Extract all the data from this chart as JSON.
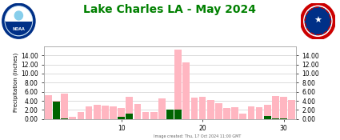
{
  "title": "Lake Charles LA - May 2024",
  "title_color": "#008000",
  "ylabel": "Precipitation (Inches)",
  "days": [
    1,
    2,
    3,
    4,
    5,
    6,
    7,
    8,
    9,
    10,
    11,
    12,
    13,
    14,
    15,
    16,
    17,
    18,
    19,
    20,
    21,
    22,
    23,
    24,
    25,
    26,
    27,
    28,
    29,
    30,
    31
  ],
  "pink_bars": [
    5.2,
    4.0,
    5.5,
    0.5,
    1.5,
    2.8,
    3.2,
    3.0,
    2.8,
    2.5,
    4.9,
    3.3,
    1.6,
    1.5,
    4.5,
    2.0,
    15.2,
    12.5,
    4.7,
    4.9,
    4.1,
    3.5,
    2.5,
    2.6,
    1.2,
    2.8,
    2.6,
    3.2,
    5.1,
    4.8,
    4.2
  ],
  "green_bars": [
    0.0,
    3.8,
    0.15,
    0.0,
    0.0,
    0.0,
    0.0,
    0.0,
    0.0,
    0.4,
    1.1,
    0.0,
    0.0,
    0.0,
    0.0,
    2.0,
    2.1,
    0.0,
    0.0,
    0.0,
    0.0,
    0.0,
    0.0,
    0.0,
    0.0,
    0.0,
    0.0,
    0.7,
    0.1,
    0.1,
    0.0
  ],
  "pink_color": "#FFB6C1",
  "green_color": "#006400",
  "ylim": [
    0,
    16
  ],
  "yticks": [
    0.0,
    2.0,
    4.0,
    6.0,
    8.0,
    10.0,
    12.0,
    14.0
  ],
  "xticks": [
    10,
    20,
    30
  ],
  "background_color": "#ffffff",
  "plot_bg_color": "#ffffff",
  "grid_color": "#cccccc",
  "footer_text": "Image created: Thu, 17 Oct 2024 11:00 GMT",
  "bar_width": 0.85,
  "title_fontsize": 10,
  "ylabel_fontsize": 5,
  "tick_fontsize": 5.5
}
